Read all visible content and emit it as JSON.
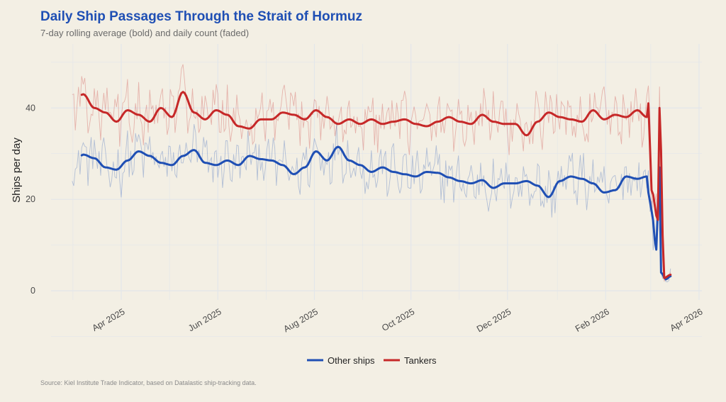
{
  "chart_data": {
    "type": "line",
    "title": "Daily Ship Passages Through the Strait of Hormuz",
    "subtitle": "7-day rolling average (bold) and daily count (faded)",
    "ylabel": "Ships per day",
    "xlabel": "",
    "source": "Source: Kiel Institute Trade Indicator, based on Datalastic ship-tracking data.",
    "colors": {
      "title": "#1f4fb4",
      "other": "#1f4fb4",
      "tankers": "#c62828",
      "grid": "#e3e6ea",
      "subtitle": "#6a6a6a"
    },
    "ylim": [
      -2,
      54
    ],
    "y_ticks": [
      0,
      20,
      40
    ],
    "x_ticks": [
      {
        "label": "Apr 2025",
        "date": "2025-04-01"
      },
      {
        "label": "Jun 2025",
        "date": "2025-06-01"
      },
      {
        "label": "Aug 2025",
        "date": "2025-08-01"
      },
      {
        "label": "Oct 2025",
        "date": "2025-10-01"
      },
      {
        "label": "Dec 2025",
        "date": "2025-12-01"
      },
      {
        "label": "Feb 2026",
        "date": "2026-02-01"
      },
      {
        "label": "Apr 2026",
        "date": "2026-04-01"
      }
    ],
    "x_start": "2025-03-01",
    "x_end": "2026-03-22",
    "series": [
      {
        "name": "Other ships",
        "anchors_start": "2025-03-01",
        "anchor_step_days": 7,
        "rolling_start_offset_days": 6,
        "anchors": [
          26.5,
          29.8,
          29.0,
          27.0,
          26.5,
          28.5,
          30.5,
          29.5,
          28.0,
          27.5,
          29.5,
          30.8,
          28.0,
          27.5,
          28.5,
          27.5,
          29.5,
          28.8,
          28.5,
          27.5,
          25.5,
          27.0,
          30.5,
          28.5,
          31.5,
          28.5,
          27.5,
          26.0,
          27.0,
          26.0,
          25.5,
          25.0,
          26.0,
          25.8,
          24.8,
          24.0,
          23.5,
          24.2,
          22.5,
          23.5,
          23.5,
          24.0,
          23.0,
          20.5,
          24.0,
          25.0,
          24.5,
          23.5,
          21.5,
          22.0,
          25.0,
          24.5,
          21.5,
          27.0
        ],
        "drop": [
          {
            "date": "2026-02-27",
            "value": 25.0
          },
          {
            "date": "2026-03-02",
            "value": 17.5
          },
          {
            "date": "2026-03-05",
            "value": 9.0
          },
          {
            "date": "2026-03-08",
            "value": 4.0
          },
          {
            "date": "2026-03-11",
            "value": 2.5
          },
          {
            "date": "2026-03-14",
            "value": 3.2
          }
        ]
      },
      {
        "name": "Tankers",
        "anchors_start": "2025-03-01",
        "anchor_step_days": 7,
        "rolling_start_offset_days": 6,
        "anchors": [
          40.5,
          43.0,
          40.0,
          39.0,
          37.0,
          39.5,
          38.5,
          37.0,
          40.0,
          38.0,
          43.5,
          39.0,
          37.5,
          39.5,
          38.5,
          36.0,
          35.5,
          37.5,
          37.5,
          39.0,
          38.5,
          37.5,
          39.5,
          38.0,
          36.5,
          37.5,
          36.5,
          37.5,
          36.5,
          37.0,
          37.5,
          36.5,
          36.0,
          37.0,
          38.0,
          37.0,
          36.5,
          38.5,
          37.0,
          36.5,
          36.5,
          34.0,
          37.0,
          39.0,
          38.0,
          37.5,
          37.0,
          39.5,
          37.5,
          38.5,
          38.0,
          39.5,
          41.0,
          40.0
        ],
        "drop": [
          {
            "date": "2026-02-27",
            "value": 38.0
          },
          {
            "date": "2026-03-02",
            "value": 22.0
          },
          {
            "date": "2026-03-06",
            "value": 15.5
          },
          {
            "date": "2026-03-10",
            "value": 2.8
          },
          {
            "date": "2026-03-14",
            "value": 3.5
          }
        ]
      }
    ],
    "legend": [
      {
        "label": "Other ships",
        "color": "#1f4fb4"
      },
      {
        "label": "Tankers",
        "color": "#c62828"
      }
    ]
  }
}
